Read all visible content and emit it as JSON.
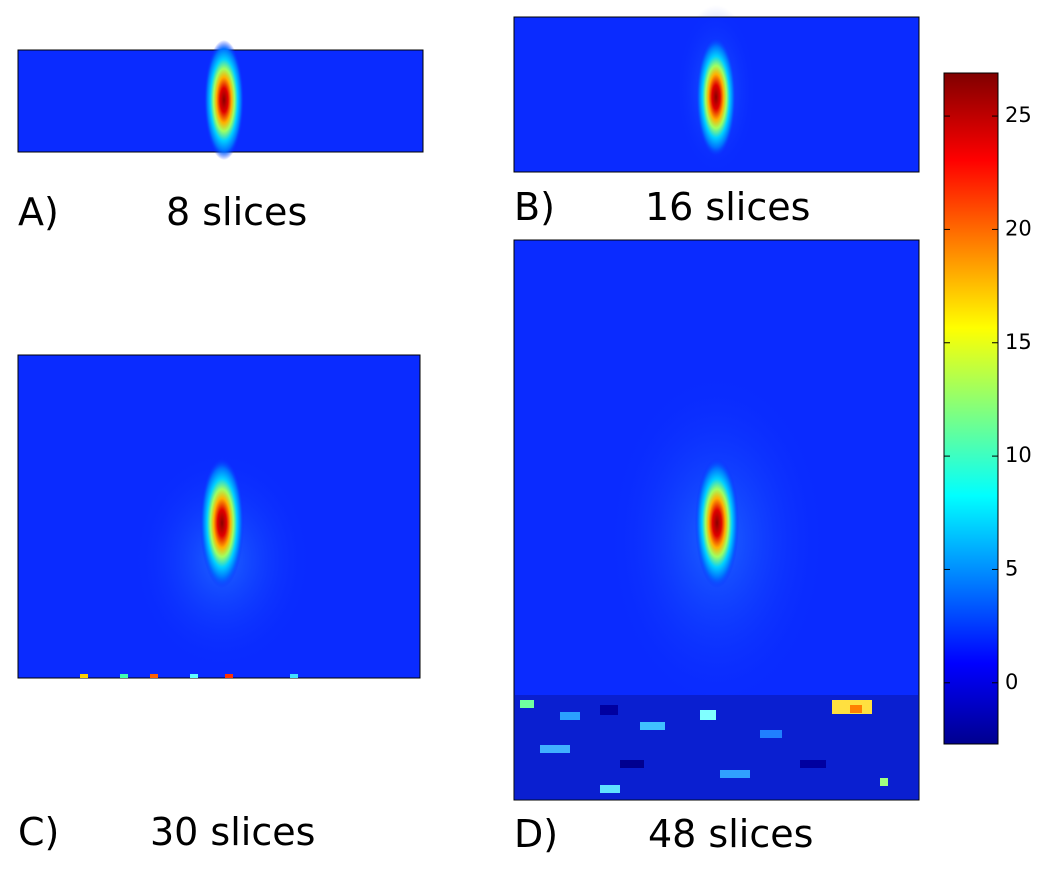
{
  "chart_data": {
    "type": "heatmap",
    "panels": [
      {
        "label": "A)",
        "caption": "8 slices"
      },
      {
        "label": "B)",
        "caption": "16 slices"
      },
      {
        "label": "C)",
        "caption": "30 slices"
      },
      {
        "label": "D)",
        "caption": "48 slices"
      }
    ],
    "colorbar": {
      "clim": [
        -2.7,
        26.9
      ],
      "ticks": [
        0,
        5,
        10,
        15,
        20,
        25
      ]
    }
  }
}
